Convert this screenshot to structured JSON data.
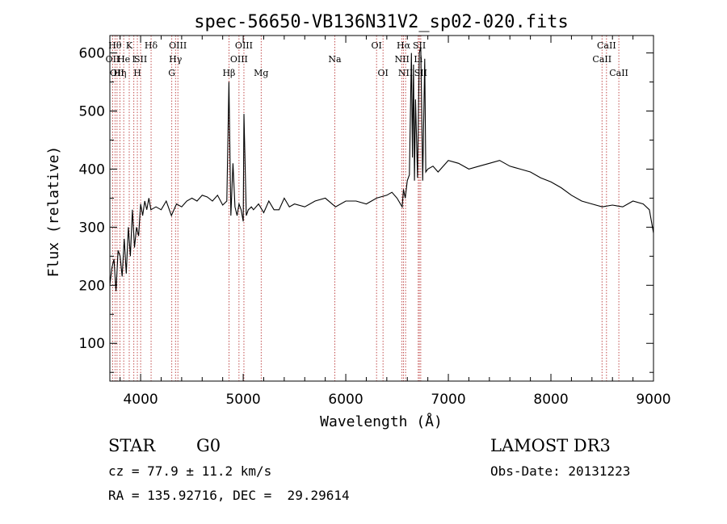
{
  "chart_data": {
    "type": "line",
    "title": "spec-56650-VB136N31V2_sp02-020.fits",
    "xlabel": "Wavelength (Å)",
    "ylabel": "Flux (relative)",
    "xlim": [
      3700,
      9000
    ],
    "ylim": [
      35,
      630
    ],
    "xticks": [
      4000,
      5000,
      6000,
      7000,
      8000,
      9000
    ],
    "yticks": [
      100,
      200,
      300,
      400,
      500,
      600
    ],
    "series": [
      {
        "name": "flux",
        "x": [
          3700,
          3720,
          3740,
          3760,
          3780,
          3800,
          3820,
          3840,
          3860,
          3880,
          3900,
          3920,
          3940,
          3960,
          3980,
          4000,
          4020,
          4040,
          4060,
          4080,
          4100,
          4150,
          4200,
          4250,
          4300,
          4350,
          4400,
          4450,
          4500,
          4550,
          4600,
          4650,
          4700,
          4750,
          4800,
          4840,
          4861,
          4880,
          4900,
          4920,
          4940,
          4959,
          4980,
          5000,
          5007,
          5030,
          5050,
          5080,
          5100,
          5150,
          5200,
          5250,
          5300,
          5350,
          5400,
          5450,
          5500,
          5600,
          5700,
          5800,
          5900,
          6000,
          6100,
          6200,
          6300,
          6400,
          6450,
          6500,
          6550,
          6563,
          6580,
          6600,
          6620,
          6640,
          6650,
          6660,
          6670,
          6680,
          6700,
          6717,
          6731,
          6750,
          6770,
          6780,
          6800,
          6850,
          6900,
          7000,
          7100,
          7200,
          7300,
          7400,
          7500,
          7600,
          7700,
          7800,
          7900,
          8000,
          8100,
          8200,
          8300,
          8400,
          8500,
          8600,
          8700,
          8800,
          8900,
          8960,
          9000
        ],
        "values": [
          200,
          230,
          245,
          190,
          260,
          250,
          215,
          280,
          220,
          300,
          250,
          330,
          265,
          300,
          285,
          340,
          320,
          345,
          330,
          350,
          330,
          335,
          330,
          345,
          320,
          340,
          335,
          345,
          350,
          345,
          355,
          352,
          345,
          355,
          338,
          345,
          550,
          320,
          410,
          335,
          320,
          340,
          330,
          310,
          495,
          320,
          330,
          335,
          330,
          340,
          325,
          345,
          330,
          330,
          350,
          335,
          340,
          335,
          345,
          350,
          335,
          345,
          345,
          340,
          350,
          355,
          360,
          350,
          335,
          365,
          350,
          380,
          390,
          600,
          420,
          580,
          380,
          520,
          385,
          600,
          610,
          380,
          590,
          395,
          400,
          405,
          395,
          415,
          410,
          400,
          405,
          410,
          415,
          405,
          400,
          395,
          385,
          378,
          368,
          355,
          345,
          340,
          335,
          338,
          335,
          345,
          340,
          330,
          290
        ]
      }
    ],
    "reference_lines": [
      {
        "wavelength": 3727,
        "label": "OII",
        "row": 2
      },
      {
        "wavelength": 3750,
        "label": "Hθ",
        "row": 1
      },
      {
        "wavelength": 3770,
        "label": "OII",
        "row": 3
      },
      {
        "wavelength": 3798,
        "label": "Hη",
        "row": 3
      },
      {
        "wavelength": 3835,
        "label": "He",
        "row": 2
      },
      {
        "wavelength": 3889,
        "label": "K",
        "row": 1
      },
      {
        "wavelength": 3934,
        "label": "I",
        "row": 2
      },
      {
        "wavelength": 3968,
        "label": "H",
        "row": 3
      },
      {
        "wavelength": 4000,
        "label": "SII",
        "row": 2
      },
      {
        "wavelength": 4102,
        "label": "Hδ",
        "row": 1
      },
      {
        "wavelength": 4304,
        "label": "G",
        "row": 3
      },
      {
        "wavelength": 4340,
        "label": "Hγ",
        "row": 2
      },
      {
        "wavelength": 4363,
        "label": "OIII",
        "row": 1
      },
      {
        "wavelength": 4861,
        "label": "Hβ",
        "row": 3
      },
      {
        "wavelength": 4959,
        "label": "OIII",
        "row": 2
      },
      {
        "wavelength": 5007,
        "label": "OIII",
        "row": 1
      },
      {
        "wavelength": 5175,
        "label": "Mg",
        "row": 3
      },
      {
        "wavelength": 5893,
        "label": "Na",
        "row": 2
      },
      {
        "wavelength": 6300,
        "label": "OI",
        "row": 1
      },
      {
        "wavelength": 6363,
        "label": "OI",
        "row": 3
      },
      {
        "wavelength": 6548,
        "label": "NII",
        "row": 2
      },
      {
        "wavelength": 6563,
        "label": "Hα",
        "row": 1
      },
      {
        "wavelength": 6583,
        "label": "NII",
        "row": 3
      },
      {
        "wavelength": 6707,
        "label": "Li",
        "row": 2
      },
      {
        "wavelength": 6717,
        "label": "SII",
        "row": 1
      },
      {
        "wavelength": 6731,
        "label": "SII",
        "row": 3
      },
      {
        "wavelength": 8498,
        "label": "CaII",
        "row": 2
      },
      {
        "wavelength": 8542,
        "label": "CaII",
        "row": 1
      },
      {
        "wavelength": 8662,
        "label": "CaII",
        "row": 3
      }
    ],
    "colors": {
      "axis": "#000000",
      "line": "#000000",
      "reference": "#b22222"
    }
  },
  "info": {
    "object_class": "STAR",
    "subclass": "G0",
    "survey": "LAMOST DR3",
    "cz": "cz = 77.9 ± 11.2 km/s",
    "obs_date": "Obs-Date: 20131223",
    "coords": "RA = 135.92716, DEC =  29.29614"
  }
}
